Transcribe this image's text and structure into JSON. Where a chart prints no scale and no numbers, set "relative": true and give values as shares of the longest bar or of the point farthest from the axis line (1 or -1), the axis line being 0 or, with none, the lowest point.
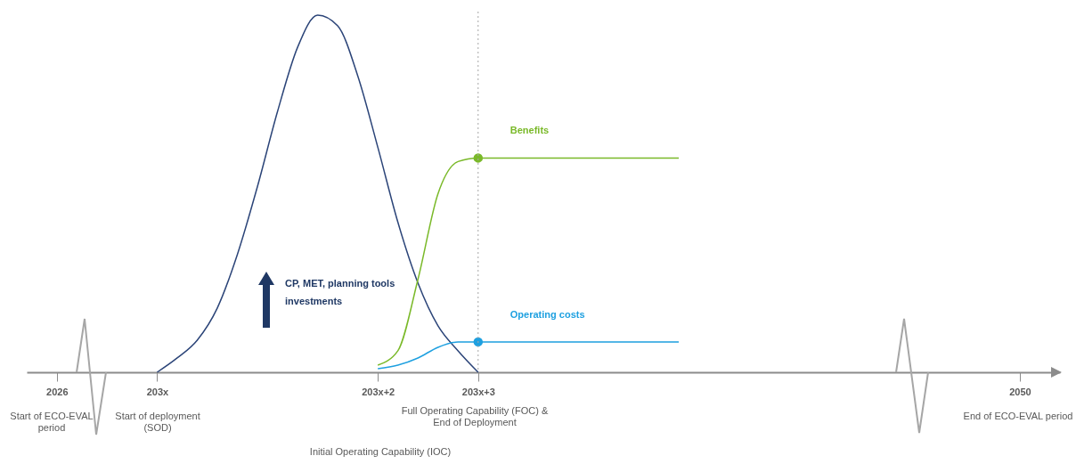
{
  "chart_data": {
    "type": "line",
    "relative": true,
    "grid": false,
    "tick_labels": "x",
    "line_style": "solid",
    "marker": "none",
    "categories": [
      "2026",
      null,
      null,
      null,
      null,
      "203x",
      null,
      null,
      null,
      null,
      null,
      null,
      null,
      null,
      null,
      null,
      "203x+2",
      null,
      null,
      null,
      null,
      "203x+3",
      null,
      null,
      null,
      null,
      null,
      null,
      null,
      null,
      null,
      null,
      null,
      null,
      null,
      null,
      null,
      null,
      null,
      null,
      null,
      null,
      null,
      null,
      null,
      null,
      null,
      null,
      "2050",
      null
    ],
    "series": [
      {
        "color": "#2b4478",
        "values": [
          null,
          null,
          null,
          null,
          null,
          0,
          0.04,
          0.09,
          0.18,
          0.33,
          0.52,
          0.73,
          0.91,
          1,
          0.97,
          0.83,
          0.63,
          0.42,
          0.25,
          0.13,
          0.06,
          0,
          null,
          null,
          null,
          null,
          null,
          null,
          null,
          null,
          null,
          null,
          null,
          null,
          null,
          null,
          null,
          null,
          null,
          null,
          null,
          null,
          null,
          null,
          null,
          null,
          null,
          null,
          null,
          null
        ]
      },
      {
        "name": "Benefits",
        "color": "#7ab929",
        "values": [
          null,
          null,
          null,
          null,
          null,
          null,
          null,
          null,
          null,
          null,
          null,
          null,
          null,
          null,
          null,
          null,
          0.02,
          0.06,
          0.26,
          0.5,
          0.59,
          0.6,
          0.6,
          0.6,
          0.6,
          0.6,
          0.6,
          0.6,
          0.6,
          0.6,
          0.6,
          0.6,
          null,
          null,
          null,
          null,
          null,
          null,
          null,
          null,
          null,
          null,
          null,
          null,
          null,
          null,
          null,
          null,
          null,
          null
        ]
      },
      {
        "name": "Operating costs",
        "color": "#1ea0e0",
        "values": [
          null,
          null,
          null,
          null,
          null,
          null,
          null,
          null,
          null,
          null,
          null,
          null,
          null,
          null,
          null,
          null,
          0.01,
          0.02,
          0.04,
          0.07,
          0.085,
          0.085,
          0.085,
          0.085,
          0.085,
          0.085,
          0.085,
          0.085,
          0.085,
          0.085,
          0.085,
          0.085,
          null,
          null,
          null,
          null,
          null,
          null,
          null,
          null,
          null,
          null,
          null,
          null,
          null,
          null,
          null,
          null,
          null,
          null
        ]
      },
      {
        "type": "scatter",
        "marker": "circle",
        "color": "#7ab929",
        "x": [
          "203x+3"
        ],
        "values": [
          0.6
        ]
      },
      {
        "type": "scatter",
        "marker": "circle",
        "color": "#1ea0e0",
        "x": [
          "203x+3"
        ],
        "values": [
          0.085
        ]
      }
    ],
    "ref_lines": [
      {
        "axis": "x",
        "value": "203x+3",
        "color": "#a6a6a6",
        "line_style": "dotted"
      }
    ],
    "annotations": [
      "Start of ECO-EVAL period",
      "Start of deployment (SOD)",
      "Initial Operating Capability (IOC)",
      "Full Operating Capability (FOC) & End of Deployment",
      "End of ECO-EVAL period",
      "CP, MET, planning tools investments"
    ]
  }
}
